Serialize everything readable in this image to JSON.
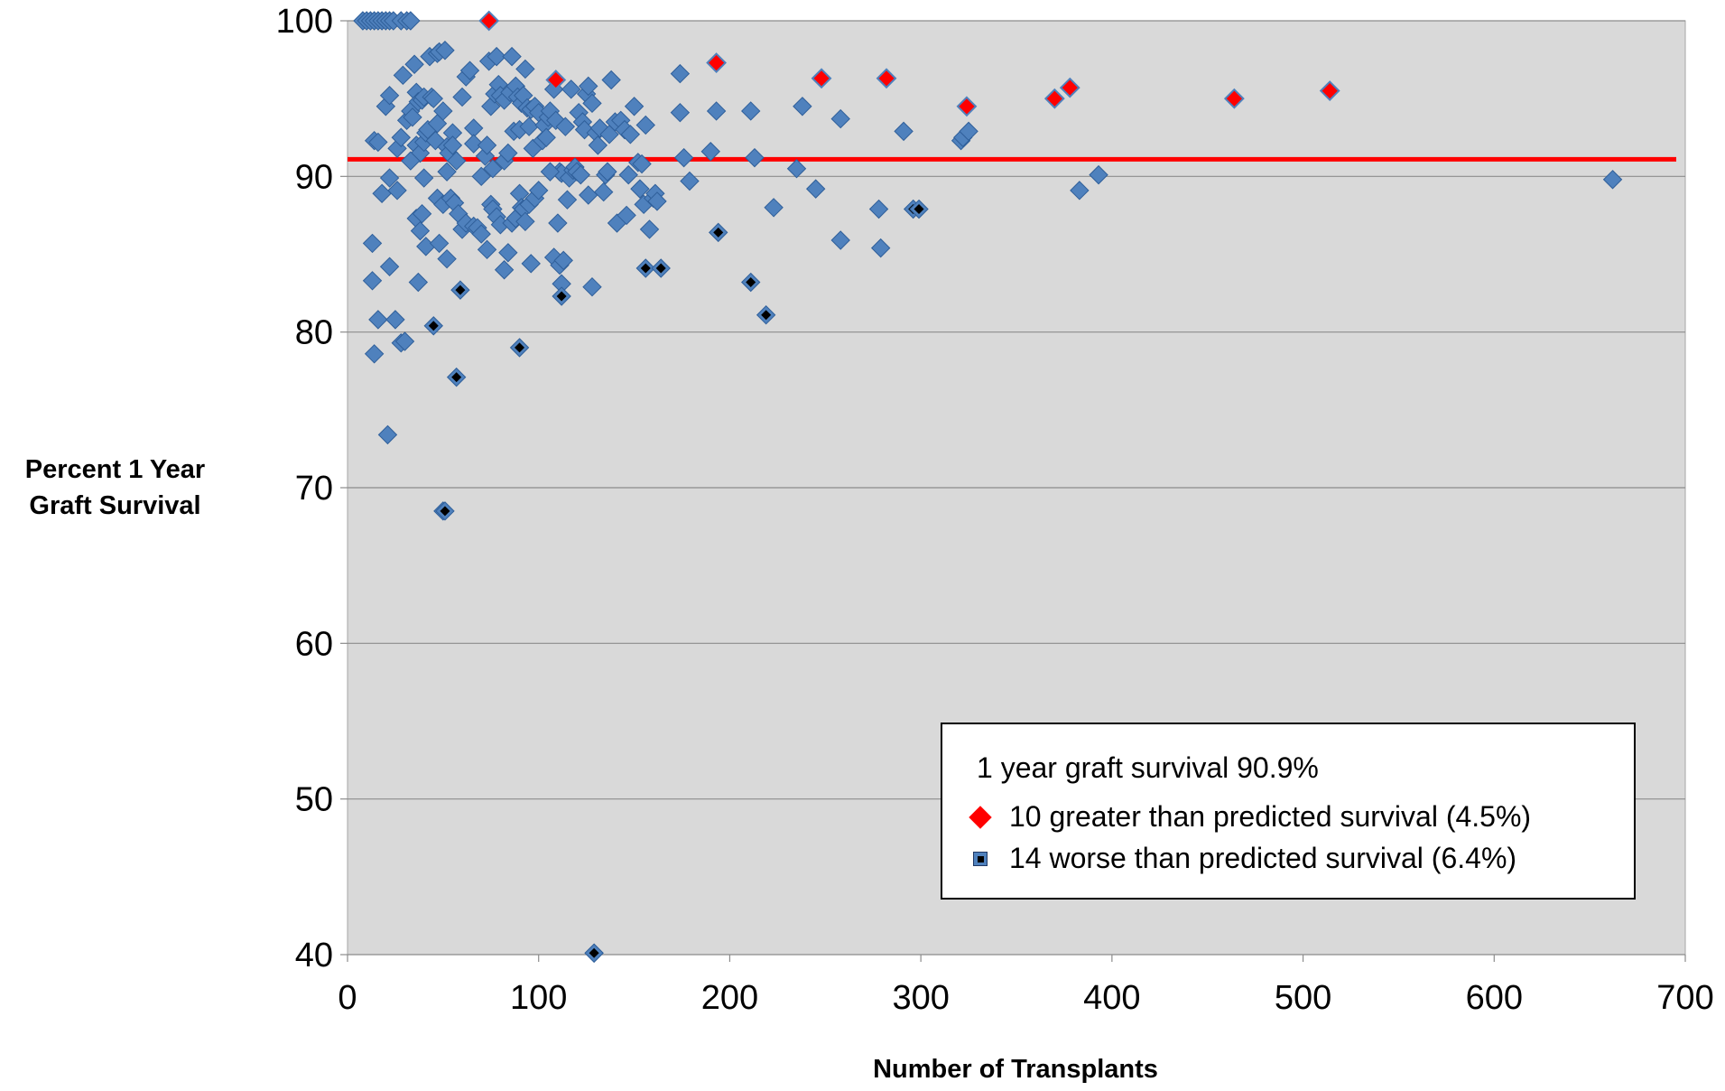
{
  "chart_data": {
    "type": "scatter",
    "title": "",
    "xlabel": "Number of Transplants",
    "ylabel_lines": [
      "Percent 1 Year",
      "Graft Survival"
    ],
    "xlim": [
      0,
      700
    ],
    "ylim": [
      40,
      100
    ],
    "x_ticks": [
      0,
      100,
      200,
      300,
      400,
      500,
      600,
      700
    ],
    "y_ticks": [
      40,
      50,
      60,
      70,
      80,
      90,
      100
    ],
    "grid": "horizontal",
    "reference_line": {
      "y": 91.1,
      "color": "#ff0000"
    },
    "legend": {
      "placement": "bottom-right",
      "title": "1 year graft survival 90.9%",
      "entries": [
        {
          "label": "10 greater than predicted survival (4.5%)",
          "color": "#ff0000"
        },
        {
          "label": "14 worse than predicted survival (6.4%)",
          "color": "#000000"
        }
      ]
    },
    "colors": {
      "background": "#d9d9d9",
      "points": "#4f81bd",
      "point_edge": "#2f5f9a",
      "better": "#ff0000",
      "worse": "#000000"
    },
    "series": [
      {
        "category": "normal",
        "points": [
          [
            8,
            100
          ],
          [
            10,
            100
          ],
          [
            12,
            100
          ],
          [
            14,
            100
          ],
          [
            16,
            100
          ],
          [
            18,
            100
          ],
          [
            20,
            100
          ],
          [
            22,
            100
          ],
          [
            24,
            100
          ],
          [
            28,
            100
          ],
          [
            31,
            100
          ],
          [
            33,
            100
          ],
          [
            14,
            92.3
          ],
          [
            16,
            92.2
          ],
          [
            20,
            94.5
          ],
          [
            22,
            95.2
          ],
          [
            26,
            91.8
          ],
          [
            28,
            92.5
          ],
          [
            29,
            96.5
          ],
          [
            31,
            93.6
          ],
          [
            33,
            94.2
          ],
          [
            34,
            93.8
          ],
          [
            35,
            97.2
          ],
          [
            36,
            95.4
          ],
          [
            36,
            92.0
          ],
          [
            37,
            94.8
          ],
          [
            38,
            91.5
          ],
          [
            39,
            94.9
          ],
          [
            40,
            95.1
          ],
          [
            40,
            92.2
          ],
          [
            41,
            92.8
          ],
          [
            42,
            93.0
          ],
          [
            43,
            97.7
          ],
          [
            44,
            95.1
          ],
          [
            45,
            95.0
          ],
          [
            46,
            92.3
          ],
          [
            47,
            93.4
          ],
          [
            47,
            97.9
          ],
          [
            48,
            98.0
          ],
          [
            50,
            94.2
          ],
          [
            51,
            98.1
          ],
          [
            52,
            91.9
          ],
          [
            52,
            90.3
          ],
          [
            53,
            91.5
          ],
          [
            55,
            92.8
          ],
          [
            55,
            92.0
          ],
          [
            57,
            91.0
          ],
          [
            60,
            95.1
          ],
          [
            62,
            96.4
          ],
          [
            64,
            96.8
          ],
          [
            66,
            93.1
          ],
          [
            66,
            92.1
          ],
          [
            70,
            90.0
          ],
          [
            72,
            91.3
          ],
          [
            73,
            92.0
          ],
          [
            74,
            97.4
          ],
          [
            75,
            94.5
          ],
          [
            76,
            90.5
          ],
          [
            77,
            95.3
          ],
          [
            78,
            97.7
          ],
          [
            79,
            95.9
          ],
          [
            80,
            95.2
          ],
          [
            82,
            94.9
          ],
          [
            82,
            91.0
          ],
          [
            84,
            91.5
          ],
          [
            85,
            95.4
          ],
          [
            86,
            97.7
          ],
          [
            87,
            92.9
          ],
          [
            88,
            95.8
          ],
          [
            89,
            95.1
          ],
          [
            90,
            93.0
          ],
          [
            91,
            94.7
          ],
          [
            92,
            95.2
          ],
          [
            93,
            96.9
          ],
          [
            94,
            94.4
          ],
          [
            95,
            93.2
          ],
          [
            96,
            94.3
          ],
          [
            97,
            91.8
          ],
          [
            98,
            94.5
          ],
          [
            100,
            94.1
          ],
          [
            102,
            92.3
          ],
          [
            103,
            93.3
          ],
          [
            104,
            92.5
          ],
          [
            105,
            93.8
          ],
          [
            106,
            94.2
          ],
          [
            108,
            95.6
          ],
          [
            109,
            93.6
          ],
          [
            111,
            90.3
          ],
          [
            112,
            90.2
          ],
          [
            114,
            93.2
          ],
          [
            116,
            89.9
          ],
          [
            117,
            95.6
          ],
          [
            118,
            90.4
          ],
          [
            119,
            90.6
          ],
          [
            120,
            90.3
          ],
          [
            121,
            94.1
          ],
          [
            122,
            90.1
          ],
          [
            123,
            93.5
          ],
          [
            124,
            93.0
          ],
          [
            125,
            95.3
          ],
          [
            126,
            95.8
          ],
          [
            128,
            94.7
          ],
          [
            130,
            92.8
          ],
          [
            131,
            92.0
          ],
          [
            132,
            93.1
          ],
          [
            134,
            89.0
          ],
          [
            135,
            90.1
          ],
          [
            136,
            90.3
          ],
          [
            137,
            92.7
          ],
          [
            138,
            96.2
          ],
          [
            140,
            93.5
          ],
          [
            141,
            87.0
          ],
          [
            143,
            93.6
          ],
          [
            145,
            93.0
          ],
          [
            146,
            87.5
          ],
          [
            147,
            90.1
          ],
          [
            148,
            92.7
          ],
          [
            150,
            94.5
          ],
          [
            152,
            90.9
          ],
          [
            153,
            89.2
          ],
          [
            154,
            90.8
          ],
          [
            155,
            88.2
          ],
          [
            156,
            93.3
          ],
          [
            158,
            86.6
          ],
          [
            160,
            88.6
          ],
          [
            161,
            88.9
          ],
          [
            162,
            88.4
          ],
          [
            174,
            96.6
          ],
          [
            174,
            94.1
          ],
          [
            176,
            91.2
          ],
          [
            179,
            89.7
          ],
          [
            190,
            91.6
          ],
          [
            193,
            94.2
          ],
          [
            211,
            94.2
          ],
          [
            213,
            91.2
          ],
          [
            223,
            88.0
          ],
          [
            235,
            90.5
          ],
          [
            238,
            94.5
          ],
          [
            245,
            89.2
          ],
          [
            258,
            85.9
          ],
          [
            258,
            93.7
          ],
          [
            278,
            87.9
          ],
          [
            279,
            85.4
          ],
          [
            291,
            92.9
          ],
          [
            321,
            92.3
          ],
          [
            322,
            92.5
          ],
          [
            325,
            92.9
          ],
          [
            383,
            89.1
          ],
          [
            393,
            90.1
          ],
          [
            662,
            89.8
          ],
          [
            13,
            85.7
          ],
          [
            13,
            83.3
          ],
          [
            14,
            78.6
          ],
          [
            16,
            80.8
          ],
          [
            18,
            88.9
          ],
          [
            21,
            73.4
          ],
          [
            22,
            89.9
          ],
          [
            22,
            84.2
          ],
          [
            25,
            80.8
          ],
          [
            26,
            89.1
          ],
          [
            28,
            79.3
          ],
          [
            30,
            79.4
          ],
          [
            33,
            91.0
          ],
          [
            36,
            87.3
          ],
          [
            37,
            83.2
          ],
          [
            38,
            86.5
          ],
          [
            39,
            87.6
          ],
          [
            40,
            89.9
          ],
          [
            41,
            85.5
          ],
          [
            47,
            88.6
          ],
          [
            48,
            85.7
          ],
          [
            50,
            88.2
          ],
          [
            50,
            68.5
          ],
          [
            52,
            84.7
          ],
          [
            54,
            88.6
          ],
          [
            56,
            88.3
          ],
          [
            58,
            87.6
          ],
          [
            60,
            86.6
          ],
          [
            62,
            87.0
          ],
          [
            66,
            86.8
          ],
          [
            68,
            86.7
          ],
          [
            70,
            86.3
          ],
          [
            73,
            85.3
          ],
          [
            75,
            88.2
          ],
          [
            76,
            87.9
          ],
          [
            78,
            87.4
          ],
          [
            80,
            86.9
          ],
          [
            82,
            84.0
          ],
          [
            84,
            85.1
          ],
          [
            86,
            87.0
          ],
          [
            88,
            87.3
          ],
          [
            90,
            88.9
          ],
          [
            91,
            88.0
          ],
          [
            92,
            87.9
          ],
          [
            93,
            87.1
          ],
          [
            95,
            88.2
          ],
          [
            96,
            84.4
          ],
          [
            98,
            88.6
          ],
          [
            100,
            89.1
          ],
          [
            106,
            90.3
          ],
          [
            108,
            84.8
          ],
          [
            110,
            87.0
          ],
          [
            111,
            84.3
          ],
          [
            112,
            83.1
          ],
          [
            113,
            84.6
          ],
          [
            115,
            88.5
          ],
          [
            126,
            88.8
          ],
          [
            128,
            82.9
          ],
          [
            129,
            40.1
          ]
        ]
      },
      {
        "category": "better",
        "points": [
          [
            74,
            100
          ],
          [
            109,
            96.2
          ],
          [
            193,
            97.3
          ],
          [
            248,
            96.3
          ],
          [
            282,
            96.3
          ],
          [
            324,
            94.5
          ],
          [
            370,
            95.0
          ],
          [
            378,
            95.7
          ],
          [
            464,
            95.0
          ],
          [
            514,
            95.5
          ]
        ]
      },
      {
        "category": "worse",
        "points": [
          [
            45,
            80.4
          ],
          [
            51,
            68.5
          ],
          [
            57,
            77.1
          ],
          [
            59,
            82.7
          ],
          [
            90,
            79.0
          ],
          [
            112,
            82.3
          ],
          [
            129,
            40.1
          ],
          [
            156,
            84.1
          ],
          [
            164,
            84.1
          ],
          [
            194,
            86.4
          ],
          [
            211,
            83.2
          ],
          [
            219,
            81.1
          ],
          [
            296,
            87.9
          ],
          [
            299,
            87.9
          ]
        ]
      }
    ]
  }
}
